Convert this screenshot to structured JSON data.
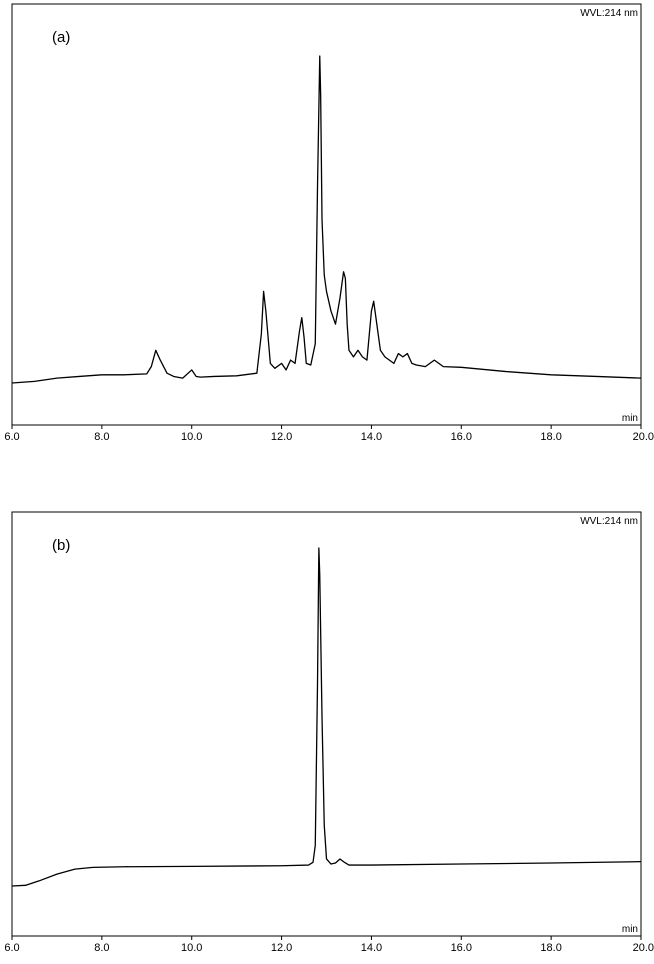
{
  "chart_data": [
    {
      "type": "line",
      "panel_label": "(a)",
      "detector_label": "WVL:214 nm",
      "xlabel": "min",
      "xlim": [
        6.0,
        20.0
      ],
      "xticks": [
        "6.0",
        "8.0",
        "10.0",
        "12.0",
        "14.0",
        "16.0",
        "18.0",
        "20.0"
      ],
      "ylim": [
        0,
        100
      ],
      "series": [
        {
          "x": [
            6.0,
            6.5,
            7.0,
            7.5,
            8.0,
            8.5,
            9.0,
            9.1,
            9.2,
            9.3,
            9.45,
            9.6,
            9.8,
            10.0,
            10.1,
            10.2,
            10.5,
            11.0,
            11.45,
            11.55,
            11.6,
            11.65,
            11.75,
            11.85,
            12.0,
            12.1,
            12.2,
            12.3,
            12.4,
            12.45,
            12.5,
            12.55,
            12.65,
            12.75,
            12.8,
            12.85,
            12.87,
            12.9,
            12.95,
            13.0,
            13.1,
            13.2,
            13.3,
            13.38,
            13.42,
            13.46,
            13.5,
            13.6,
            13.7,
            13.8,
            13.9,
            14.0,
            14.05,
            14.1,
            14.2,
            14.3,
            14.4,
            14.5,
            14.6,
            14.7,
            14.8,
            14.9,
            15.0,
            15.2,
            15.4,
            15.6,
            16.0,
            17.0,
            18.0,
            19.0,
            20.0
          ],
          "values": [
            0,
            0.5,
            1.5,
            2.0,
            2.5,
            2.5,
            2.8,
            5,
            10,
            7,
            3,
            2,
            1.5,
            4,
            2,
            1.8,
            2,
            2.2,
            3,
            15,
            28,
            22,
            6,
            4.5,
            6,
            4,
            7,
            6,
            16,
            20,
            14,
            6,
            5.5,
            12,
            60,
            100,
            88,
            50,
            33,
            28,
            22,
            18,
            26,
            34,
            32,
            18,
            10,
            8,
            10,
            8,
            7,
            22,
            25,
            20,
            10,
            8,
            7,
            6,
            9,
            8,
            9,
            6,
            5.5,
            5,
            7,
            5,
            4.8,
            3.5,
            2.5,
            2.0,
            1.5
          ]
        }
      ]
    },
    {
      "type": "line",
      "panel_label": "(b)",
      "detector_label": "WVL:214 nm",
      "xlabel": "min",
      "xlim": [
        6.0,
        20.0
      ],
      "xticks": [
        "6.0",
        "8.0",
        "10.0",
        "12.0",
        "14.0",
        "16.0",
        "18.0",
        "20.0"
      ],
      "ylim": [
        0,
        100
      ],
      "series": [
        {
          "x": [
            6.0,
            6.3,
            6.6,
            7.0,
            7.4,
            7.8,
            8.5,
            10.0,
            12.0,
            12.6,
            12.7,
            12.75,
            12.8,
            12.83,
            12.85,
            12.9,
            12.95,
            13.0,
            13.1,
            13.2,
            13.3,
            13.4,
            13.5,
            14.0,
            16.0,
            18.0,
            20.0
          ],
          "values": [
            0,
            0.2,
            1.5,
            3.5,
            5,
            5.5,
            5.7,
            5.8,
            6,
            6.2,
            7,
            12,
            60,
            100,
            92,
            50,
            18,
            8,
            6.5,
            6.8,
            8,
            7,
            6.2,
            6.2,
            6.5,
            6.8,
            7.2
          ]
        }
      ]
    }
  ]
}
